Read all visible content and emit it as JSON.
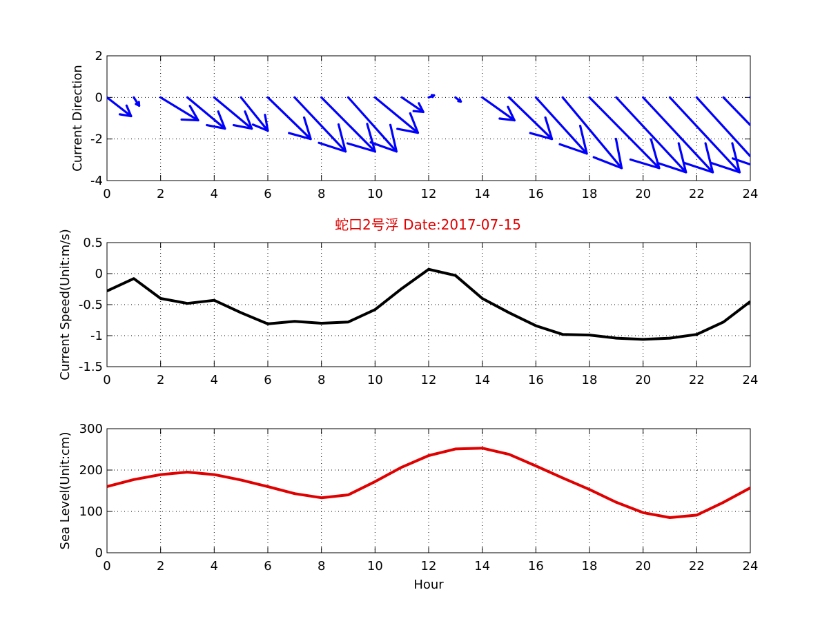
{
  "figure_title": "蛇口2号浮   Date:2017-07-15",
  "colors": {
    "title": "#e00000",
    "quiver": "#0000ff",
    "speed_line": "#000000",
    "sea_level_line": "#e00000"
  },
  "chart_data": [
    {
      "type": "quiver",
      "xlabel": "",
      "ylabel": "Current Direction",
      "xlim": [
        0,
        24
      ],
      "ylim": [
        -4,
        2
      ],
      "xticks": [
        0,
        2,
        4,
        6,
        8,
        10,
        12,
        14,
        16,
        18,
        20,
        22,
        24
      ],
      "yticks": [
        -4,
        -2,
        0,
        2
      ],
      "grid": true,
      "x": [
        0,
        1,
        2,
        3,
        4,
        5,
        6,
        7,
        8,
        9,
        10,
        11,
        12,
        13,
        14,
        15,
        16,
        17,
        18,
        19,
        20,
        21,
        22,
        23,
        24
      ],
      "u": [
        0.9,
        0.2,
        1.4,
        1.4,
        1.4,
        1.0,
        1.6,
        1.9,
        2.0,
        1.8,
        1.6,
        0.8,
        0.2,
        0.2,
        1.2,
        1.6,
        1.9,
        2.2,
        2.6,
        2.6,
        2.6,
        2.6,
        2.4,
        2.1,
        1.4
      ],
      "v": [
        -0.9,
        -0.4,
        -1.1,
        -1.5,
        -1.5,
        -1.6,
        -2.0,
        -2.6,
        -2.6,
        -2.6,
        -1.7,
        -0.7,
        0.1,
        -0.2,
        -1.1,
        -2.0,
        -2.7,
        -3.4,
        -3.4,
        -3.6,
        -3.6,
        -3.6,
        -3.4,
        -2.8,
        -2.0
      ]
    },
    {
      "type": "line",
      "xlabel": "",
      "ylabel": "Current Speed(Unit:m/s)",
      "xlim": [
        0,
        24
      ],
      "ylim": [
        -1.5,
        0.5
      ],
      "xticks": [
        0,
        2,
        4,
        6,
        8,
        10,
        12,
        14,
        16,
        18,
        20,
        22,
        24
      ],
      "yticks": [
        -1.5,
        -1,
        -0.5,
        0,
        0.5
      ],
      "ytick_labels": [
        "-1.5",
        "-1",
        "-0.5",
        "0",
        "0.5"
      ],
      "grid": true,
      "series": [
        {
          "x": [
            0,
            1,
            2,
            3,
            4,
            5,
            6,
            7,
            8,
            9,
            10,
            11,
            12,
            13,
            14,
            15,
            16,
            17,
            18,
            19,
            20,
            21,
            22,
            23,
            24
          ],
          "values": [
            -0.28,
            -0.08,
            -0.4,
            -0.48,
            -0.43,
            -0.63,
            -0.81,
            -0.77,
            -0.8,
            -0.78,
            -0.58,
            -0.24,
            0.07,
            -0.03,
            -0.4,
            -0.63,
            -0.84,
            -0.98,
            -0.99,
            -1.04,
            -1.06,
            -1.04,
            -0.98,
            -0.78,
            -0.45
          ]
        }
      ]
    },
    {
      "type": "line",
      "xlabel": "Hour",
      "ylabel": "Sea Level(Unit:cm)",
      "xlim": [
        0,
        24
      ],
      "ylim": [
        0,
        300
      ],
      "xticks": [
        0,
        2,
        4,
        6,
        8,
        10,
        12,
        14,
        16,
        18,
        20,
        22,
        24
      ],
      "yticks": [
        0,
        100,
        200,
        300
      ],
      "grid": true,
      "series": [
        {
          "x": [
            0,
            1,
            2,
            3,
            4,
            5,
            6,
            7,
            8,
            9,
            10,
            11,
            12,
            13,
            14,
            15,
            16,
            17,
            18,
            19,
            20,
            21,
            22,
            23,
            24
          ],
          "values": [
            160,
            177,
            189,
            195,
            189,
            176,
            160,
            143,
            133,
            140,
            172,
            207,
            235,
            251,
            253,
            238,
            210,
            181,
            153,
            122,
            97,
            85,
            91,
            122,
            157
          ]
        }
      ]
    }
  ]
}
